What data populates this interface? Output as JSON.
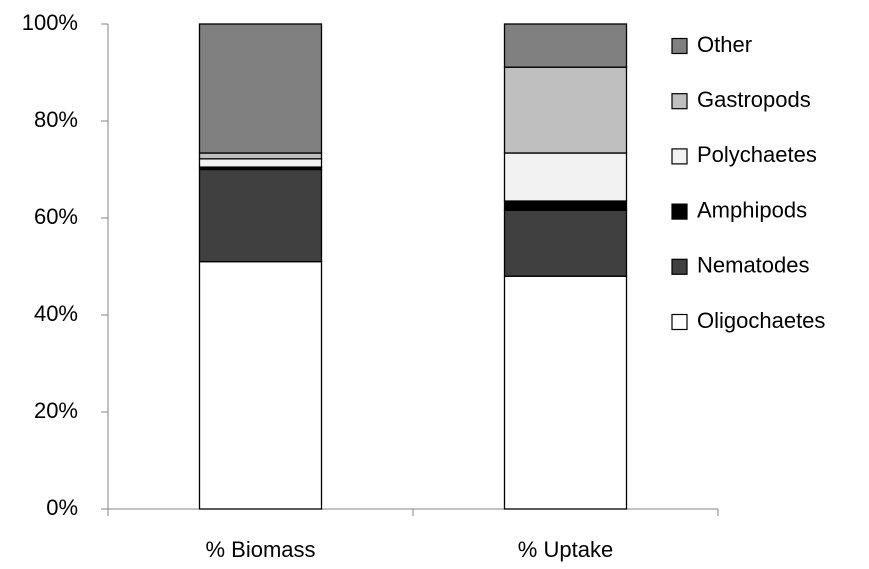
{
  "chart_data": {
    "type": "stacked-bar",
    "categories": [
      "% Biomass",
      "% Uptake"
    ],
    "series": [
      {
        "name": "Oligochaetes",
        "color": "#ffffff",
        "values": [
          51,
          48
        ]
      },
      {
        "name": "Nematodes",
        "color": "#404040",
        "values": [
          19,
          13.6
        ]
      },
      {
        "name": "Amphipods",
        "color": "#000000",
        "values": [
          0.5,
          1.9
        ]
      },
      {
        "name": "Polychaetes",
        "color": "#f2f2f2",
        "values": [
          1.7,
          9.9
        ]
      },
      {
        "name": "Gastropods",
        "color": "#bfbfbf",
        "values": [
          1.2,
          17.7
        ]
      },
      {
        "name": "Other",
        "color": "#808080",
        "values": [
          26.6,
          8.9
        ]
      }
    ],
    "ylim": [
      0,
      100
    ],
    "yticks": [
      {
        "value": 0,
        "label": "0%"
      },
      {
        "value": 20,
        "label": "20%"
      },
      {
        "value": 40,
        "label": "40%"
      },
      {
        "value": 60,
        "label": "60%"
      },
      {
        "value": 80,
        "label": "80%"
      },
      {
        "value": 100,
        "label": "100%"
      }
    ],
    "grid": false,
    "legend": "right"
  }
}
